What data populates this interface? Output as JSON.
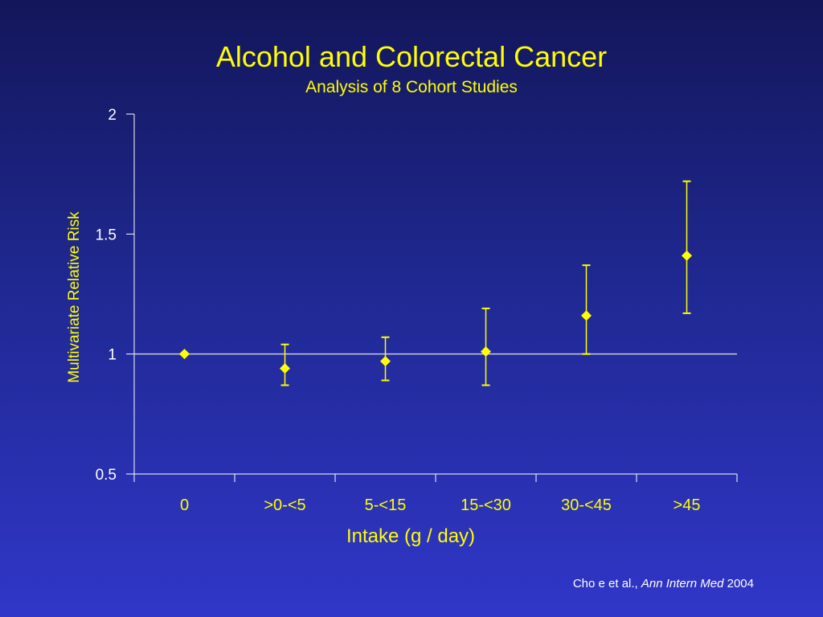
{
  "slide": {
    "title": "Alcohol and Colorectal Cancer",
    "subtitle": "Analysis of 8 Cohort Studies",
    "citation_authors": "Cho e et al.,",
    "citation_journal": "Ann Intern Med",
    "citation_year": "2004"
  },
  "colors": {
    "marker": "#ffff00",
    "axis": "#ffffff",
    "label_text": "#ffff00",
    "tick_text": "#ffffff"
  },
  "chart_data": {
    "type": "scatter",
    "title": "Alcohol and Colorectal Cancer",
    "subtitle": "Analysis of 8 Cohort Studies",
    "xlabel": "Intake (g / day)",
    "ylabel": "Multivariate Relative Risk",
    "categories": [
      "0",
      ">0-<5",
      "5-<15",
      "15-<30",
      "30-<45",
      ">45"
    ],
    "series": [
      {
        "values": [
          1.0,
          0.94,
          0.97,
          1.01,
          1.16,
          1.41
        ],
        "ci_lower": [
          null,
          0.87,
          0.89,
          0.87,
          1.0,
          1.17
        ],
        "ci_upper": [
          null,
          1.04,
          1.07,
          1.19,
          1.37,
          1.72
        ]
      }
    ],
    "ylim": [
      0.5,
      2
    ],
    "yticks": [
      0.5,
      1,
      1.5,
      2
    ],
    "ytick_labels": [
      "0.5",
      "1",
      "1.5",
      "2"
    ],
    "reference_line": 1,
    "grid": false,
    "legend": "none"
  }
}
